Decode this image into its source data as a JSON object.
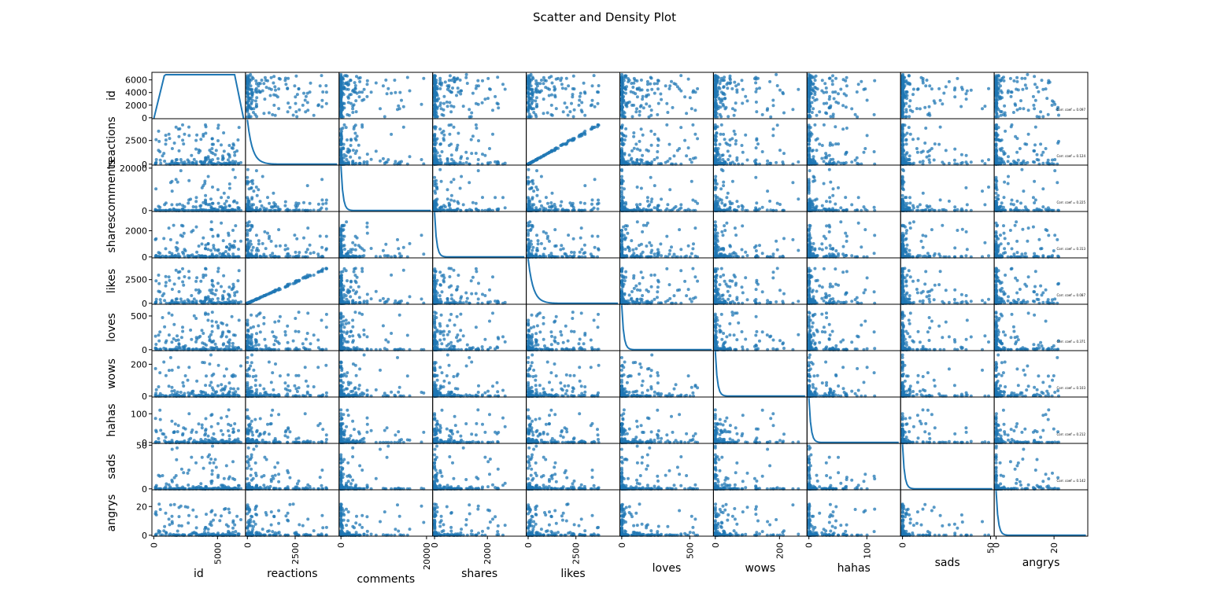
{
  "chart_data": {
    "type": "scatter",
    "title": "Scatter and Density Plot",
    "plot_kind": "scatter matrix with KDE density on diagonal",
    "marker_color": "#1f77b4",
    "grid": false,
    "variables": [
      {
        "name": "id",
        "range": [
          0,
          7050
        ],
        "yticks": [
          0,
          2000,
          4000,
          6000
        ],
        "xticks": [
          0,
          5000
        ]
      },
      {
        "name": "reactions",
        "range": [
          0,
          4700
        ],
        "yticks": [
          0,
          2500
        ],
        "xticks": [
          0,
          2500
        ]
      },
      {
        "name": "comments",
        "range": [
          0,
          21000
        ],
        "yticks": [
          0,
          20000
        ],
        "xticks": [
          0,
          20000
        ]
      },
      {
        "name": "shares",
        "range": [
          0,
          3400
        ],
        "yticks": [
          0,
          2000
        ],
        "xticks": [
          0,
          2000
        ]
      },
      {
        "name": "likes",
        "range": [
          0,
          4700
        ],
        "yticks": [
          0,
          2500
        ],
        "xticks": [
          0,
          2500
        ]
      },
      {
        "name": "loves",
        "range": [
          0,
          660
        ],
        "yticks": [
          0,
          500
        ],
        "xticks": [
          0,
          500
        ]
      },
      {
        "name": "wows",
        "range": [
          0,
          280
        ],
        "yticks": [
          0,
          200
        ],
        "xticks": [
          0,
          200
        ]
      },
      {
        "name": "hahas",
        "range": [
          0,
          155
        ],
        "yticks": [
          0,
          100
        ],
        "xticks": [
          0,
          100
        ]
      },
      {
        "name": "sads",
        "range": [
          0,
          51
        ],
        "yticks": [
          0,
          50
        ],
        "xticks": [
          0,
          50
        ]
      },
      {
        "name": "angrys",
        "range": [
          0,
          31
        ],
        "yticks": [
          0,
          20
        ],
        "xticks": [
          0,
          20
        ]
      }
    ],
    "corr_annotations": [
      {
        "row": "id",
        "col": "angrys",
        "text": "Corr. coef = 0.097"
      },
      {
        "row": "reactions",
        "col": "angrys",
        "text": "Corr. coef = 0.124"
      },
      {
        "row": "comments",
        "col": "angrys",
        "text": "Corr. coef = 0.225"
      },
      {
        "row": "shares",
        "col": "angrys",
        "text": "Corr. coef = 0.313"
      },
      {
        "row": "likes",
        "col": "angrys",
        "text": "Corr. coef = 0.087"
      },
      {
        "row": "loves",
        "col": "angrys",
        "text": "Corr. coef = 0.371"
      },
      {
        "row": "wows",
        "col": "angrys",
        "text": "Corr. coef = 0.103"
      },
      {
        "row": "hahas",
        "col": "angrys",
        "text": "Corr. coef = 0.212"
      },
      {
        "row": "sads",
        "col": "angrys",
        "text": "Corr. coef = 0.142"
      }
    ]
  }
}
